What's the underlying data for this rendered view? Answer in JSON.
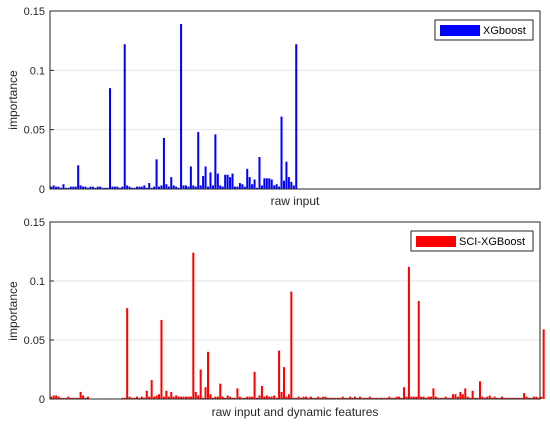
{
  "chart_data": [
    {
      "type": "bar",
      "xlabel": "raw input",
      "ylabel": "importance",
      "ylim": [
        0,
        0.15
      ],
      "yticks": [
        "0",
        "0.05",
        "0.1",
        "0.15"
      ],
      "grid": true,
      "legend_position": "top-right",
      "series": [
        {
          "name": "XGboost",
          "color": "#0000ff",
          "num_features": 200,
          "values": [
            0.002,
            0.003,
            0.002,
            0.002,
            0.001,
            0.004,
            0.001,
            0.001,
            0.002,
            0.002,
            0.002,
            0.02,
            0.003,
            0.002,
            0.002,
            0.001,
            0.002,
            0.002,
            0.001,
            0.002,
            0.002,
            0.001,
            0.001,
            0.001,
            0.085,
            0.002,
            0.002,
            0.002,
            0.001,
            0.002,
            0.122,
            0.003,
            0.002,
            0.001,
            0.001,
            0.002,
            0.002,
            0.002,
            0.003,
            0.001,
            0.005,
            0.001,
            0.002,
            0.025,
            0.002,
            0.003,
            0.043,
            0.004,
            0.002,
            0.01,
            0.003,
            0.002,
            0.001,
            0.139,
            0.003,
            0.003,
            0.002,
            0.019,
            0.003,
            0.002,
            0.048,
            0.003,
            0.011,
            0.019,
            0.002,
            0.014,
            0.003,
            0.046,
            0.013,
            0.003,
            0.002,
            0.012,
            0.012,
            0.01,
            0.013,
            0.002,
            0.002,
            0.005,
            0.004,
            0.002,
            0.017,
            0.01,
            0.004,
            0.008,
            0.001,
            0.027,
            0.003,
            0.009,
            0.009,
            0.009,
            0.008,
            0.003,
            0.004,
            0.002,
            0.061,
            0.007,
            0.023,
            0.01,
            0.006,
            0.003,
            0.122,
            0,
            0,
            0,
            0,
            0,
            0,
            0,
            0,
            0,
            0,
            0,
            0,
            0,
            0,
            0,
            0,
            0,
            0,
            0,
            0,
            0,
            0,
            0,
            0,
            0,
            0,
            0,
            0,
            0,
            0,
            0,
            0,
            0,
            0,
            0,
            0,
            0,
            0,
            0,
            0,
            0,
            0,
            0,
            0,
            0,
            0,
            0,
            0,
            0,
            0,
            0,
            0,
            0,
            0,
            0,
            0,
            0,
            0,
            0,
            0,
            0,
            0,
            0,
            0,
            0,
            0,
            0,
            0,
            0,
            0,
            0,
            0,
            0,
            0,
            0,
            0,
            0,
            0,
            0,
            0,
            0,
            0,
            0,
            0,
            0,
            0,
            0,
            0,
            0,
            0,
            0,
            0,
            0,
            0,
            0,
            0,
            0,
            0,
            0,
            0,
            0,
            0,
            0,
            0,
            0
          ]
        }
      ]
    },
    {
      "type": "bar",
      "xlabel": "raw input and dynamic features",
      "ylabel": "importance",
      "ylim": [
        0,
        0.15
      ],
      "yticks": [
        "0",
        "0.05",
        "0.1",
        "0.15"
      ],
      "grid": true,
      "legend_position": "top-right",
      "series": [
        {
          "name": "SCI-XGBoost",
          "color": "#ff0000",
          "num_features": 200,
          "values": [
            0.002,
            0.003,
            0.003,
            0.002,
            0.001,
            0.001,
            0.001,
            0.002,
            0.001,
            0.001,
            0.001,
            0.001,
            0.006,
            0.003,
            0.001,
            0.002,
            0,
            0,
            0,
            0,
            0,
            0,
            0,
            0,
            0,
            0,
            0,
            0,
            0,
            0.001,
            0.001,
            0.077,
            0.002,
            0.001,
            0.001,
            0.002,
            0.001,
            0.002,
            0.001,
            0.007,
            0.002,
            0.016,
            0.002,
            0.003,
            0.004,
            0.067,
            0.002,
            0.007,
            0.002,
            0.006,
            0.002,
            0.003,
            0.002,
            0.002,
            0.002,
            0.002,
            0.002,
            0.002,
            0.124,
            0.006,
            0.003,
            0.025,
            0.001,
            0.01,
            0.04,
            0.004,
            0.001,
            0.002,
            0.002,
            0.013,
            0.002,
            0.001,
            0.003,
            0.002,
            0.001,
            0.001,
            0.009,
            0.002,
            0.001,
            0.001,
            0.002,
            0.002,
            0.002,
            0.023,
            0.001,
            0.003,
            0.011,
            0.002,
            0.003,
            0.002,
            0.002,
            0.003,
            0.001,
            0.041,
            0.006,
            0.027,
            0.002,
            0.004,
            0.091,
            0.001,
            0.001,
            0.002,
            0.001,
            0.002,
            0.002,
            0.001,
            0.002,
            0.001,
            0.001,
            0.002,
            0.001,
            0.002,
            0.002,
            0.001,
            0.001,
            0.001,
            0.001,
            0.001,
            0.001,
            0.002,
            0.001,
            0.001,
            0.002,
            0.001,
            0.002,
            0.001,
            0.002,
            0.001,
            0.001,
            0.001,
            0.002,
            0.001,
            0.001,
            0.001,
            0.001,
            0.001,
            0.001,
            0.001,
            0.002,
            0.001,
            0.001,
            0.002,
            0.002,
            0.001,
            0.01,
            0.002,
            0.112,
            0.002,
            0.002,
            0.002,
            0.083,
            0.002,
            0.002,
            0.001,
            0.002,
            0.002,
            0.009,
            0.002,
            0.001,
            0.001,
            0.001,
            0.002,
            0.001,
            0.001,
            0.004,
            0.004,
            0.002,
            0.006,
            0.004,
            0.009,
            0.002,
            0.001,
            0.007,
            0.001,
            0.001,
            0.015,
            0.002,
            0.001,
            0.002,
            0.003,
            0.001,
            0.002,
            0.001,
            0.001,
            0.002,
            0.001,
            0.001,
            0.001,
            0.001,
            0.001,
            0.001,
            0.001,
            0.001,
            0.005,
            0.002,
            0.001,
            0.001,
            0.002,
            0.002,
            0.001,
            0.002,
            0.059
          ]
        }
      ]
    }
  ]
}
